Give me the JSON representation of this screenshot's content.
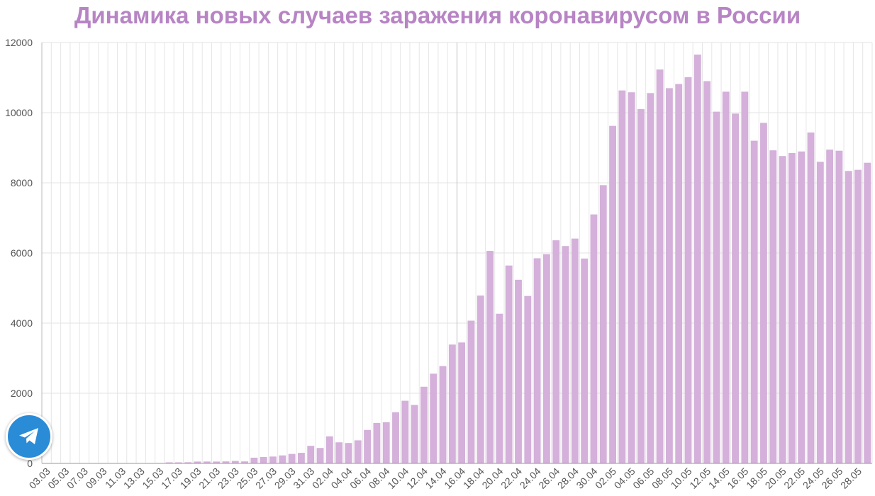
{
  "page": {
    "telegram_button_icon": "telegram-icon"
  },
  "chart_data": {
    "type": "bar",
    "title": "Динамика новых случаев заражения коронавирусом в России",
    "xlabel": "",
    "ylabel": "",
    "ylim": [
      0,
      12000
    ],
    "yticks": [
      "0",
      "2000",
      "4000",
      "6000",
      "8000",
      "10000",
      "12000"
    ],
    "grid": true,
    "color": "#d4b0da",
    "title_color": "#b784c4",
    "categories": [
      "03.03",
      "04.03",
      "05.03",
      "06.03",
      "07.03",
      "08.03",
      "09.03",
      "10.03",
      "11.03",
      "12.03",
      "13.03",
      "14.03",
      "15.03",
      "16.03",
      "17.03",
      "18.03",
      "19.03",
      "20.03",
      "21.03",
      "22.03",
      "23.03",
      "24.03",
      "25.03",
      "26.03",
      "27.03",
      "28.03",
      "29.03",
      "30.03",
      "31.03",
      "01.04",
      "02.04",
      "03.04",
      "04.04",
      "05.04",
      "06.04",
      "07.04",
      "08.04",
      "09.04",
      "10.04",
      "11.04",
      "12.04",
      "13.04",
      "14.04",
      "15.04",
      "16.04",
      "17.04",
      "18.04",
      "19.04",
      "20.04",
      "21.04",
      "22.04",
      "23.04",
      "24.04",
      "25.04",
      "26.04",
      "27.04",
      "28.04",
      "29.04",
      "30.04",
      "01.05",
      "02.05",
      "03.05",
      "04.05",
      "05.05",
      "06.05",
      "07.05",
      "08.05",
      "09.05",
      "10.05",
      "11.05",
      "12.05",
      "13.05",
      "14.05",
      "15.05",
      "16.05",
      "17.05",
      "18.05",
      "19.05",
      "20.05",
      "21.05",
      "22.05",
      "23.05",
      "24.05",
      "25.05",
      "26.05",
      "27.05",
      "28.05",
      "29.05"
    ],
    "values": [
      1,
      0,
      1,
      0,
      3,
      4,
      2,
      1,
      8,
      6,
      6,
      11,
      12,
      30,
      30,
      33,
      53,
      54,
      53,
      57,
      71,
      57,
      163,
      182,
      196,
      228,
      270,
      302,
      501,
      440,
      771,
      601,
      582,
      658,
      954,
      1154,
      1175,
      1459,
      1786,
      1667,
      2186,
      2558,
      2774,
      3388,
      3448,
      4070,
      4785,
      6060,
      4268,
      5642,
      5236,
      4774,
      5849,
      5966,
      6361,
      6198,
      6411,
      5841,
      7099,
      7933,
      9623,
      10633,
      10581,
      10102,
      10559,
      11231,
      10699,
      10817,
      11012,
      11656,
      10899,
      10028,
      10598,
      9974,
      10598,
      9200,
      9709,
      8926,
      8764,
      8849,
      8894,
      9434,
      8599,
      8946,
      8915,
      8338,
      8371,
      8572
    ]
  }
}
